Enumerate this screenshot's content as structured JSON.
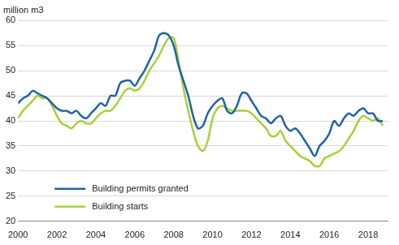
{
  "chart_data": {
    "type": "line",
    "ylabel": "million m3",
    "x": [
      2000.0,
      2000.25,
      2000.5,
      2000.75,
      2001.0,
      2001.25,
      2001.5,
      2001.75,
      2002.0,
      2002.25,
      2002.5,
      2002.75,
      2003.0,
      2003.25,
      2003.5,
      2003.75,
      2004.0,
      2004.25,
      2004.5,
      2004.75,
      2005.0,
      2005.25,
      2005.5,
      2005.75,
      2006.0,
      2006.25,
      2006.5,
      2006.75,
      2007.0,
      2007.25,
      2007.5,
      2007.75,
      2008.0,
      2008.25,
      2008.5,
      2008.75,
      2009.0,
      2009.25,
      2009.5,
      2009.75,
      2010.0,
      2010.25,
      2010.5,
      2010.75,
      2011.0,
      2011.25,
      2011.5,
      2011.75,
      2012.0,
      2012.25,
      2012.5,
      2012.75,
      2013.0,
      2013.25,
      2013.5,
      2013.75,
      2014.0,
      2014.25,
      2014.5,
      2014.75,
      2015.0,
      2015.25,
      2015.5,
      2015.75,
      2016.0,
      2016.25,
      2016.5,
      2016.75,
      2017.0,
      2017.25,
      2017.5,
      2017.75,
      2018.0,
      2018.25,
      2018.5,
      2018.75
    ],
    "series": [
      {
        "name": "Building permits granted",
        "color": "#1f63a8",
        "values": [
          43.5,
          44.5,
          45,
          46,
          45.5,
          45,
          44.5,
          43.5,
          42.5,
          42,
          42,
          41.5,
          42,
          41,
          40.5,
          41.5,
          42.5,
          43.5,
          43,
          45,
          45,
          47.5,
          48,
          48,
          47,
          48.5,
          50,
          52,
          54,
          57,
          57.5,
          57,
          55,
          51,
          48,
          45,
          41,
          38.5,
          39,
          41.5,
          43,
          44,
          44.5,
          42,
          41.5,
          43,
          45.5,
          45.5,
          44,
          42.5,
          41,
          40.5,
          39.5,
          40.5,
          41,
          39,
          38,
          38.5,
          37.5,
          36,
          34.5,
          33,
          35,
          36,
          37.5,
          40,
          39,
          40.5,
          41.5,
          41,
          42,
          42.5,
          41.5,
          41.5,
          40,
          40
        ]
      },
      {
        "name": "Building starts",
        "color": "#a8d13a",
        "values": [
          40.5,
          42,
          43,
          44,
          45,
          44.5,
          44.5,
          43,
          41,
          39.5,
          39,
          38.5,
          39.5,
          40,
          39.5,
          39.5,
          40.5,
          41.5,
          42,
          42,
          43,
          44.5,
          46,
          46.5,
          46,
          46.5,
          48,
          50,
          51.5,
          53,
          55,
          56.5,
          56.5,
          52,
          46.5,
          42,
          38,
          35,
          34,
          36,
          40.5,
          42.5,
          43,
          42.5,
          42,
          42,
          42,
          42,
          41.5,
          40.5,
          39.5,
          38.5,
          37,
          37,
          38,
          36,
          35,
          34,
          33,
          32.5,
          32,
          31,
          31,
          32.5,
          33,
          33.5,
          34,
          35,
          36.5,
          38,
          40,
          41,
          40.5,
          40,
          40.5,
          39
        ]
      }
    ],
    "xlim": [
      2000,
      2019
    ],
    "xticks": [
      2000,
      2002,
      2004,
      2006,
      2008,
      2010,
      2012,
      2014,
      2016,
      2018
    ],
    "ylim": [
      20,
      60
    ],
    "yticks": [
      20,
      25,
      30,
      35,
      40,
      45,
      50,
      55,
      60
    ],
    "grid": true,
    "legend": "lower left"
  }
}
